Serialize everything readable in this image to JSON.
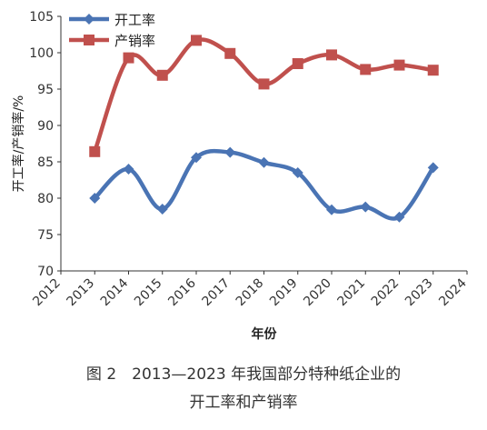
{
  "figure": {
    "caption_line1": "图 2　2013—2023 年我国部分特种纸企业的",
    "caption_line2": "开工率和产销率"
  },
  "chart_data": {
    "type": "line",
    "xlabel": "年份",
    "ylabel": "开工率/产销率/%",
    "xlim": [
      2012,
      2024
    ],
    "ylim": [
      70,
      105
    ],
    "x_ticks": [
      "2012",
      "2013",
      "2014",
      "2015",
      "2016",
      "2017",
      "2018",
      "2019",
      "2020",
      "2021",
      "2022",
      "2023",
      "2024"
    ],
    "y_ticks": [
      70,
      75,
      80,
      85,
      90,
      95,
      100,
      105
    ],
    "grid": false,
    "legend_position": "top-left",
    "x": [
      2013,
      2014,
      2015,
      2016,
      2017,
      2018,
      2019,
      2020,
      2021,
      2022,
      2023
    ],
    "series": [
      {
        "name": "开工率",
        "color": "#4a74b4",
        "marker": "diamond",
        "values": [
          80.0,
          84.0,
          78.5,
          85.6,
          86.3,
          84.9,
          83.5,
          78.4,
          78.8,
          77.4,
          84.2
        ]
      },
      {
        "name": "产销率",
        "color": "#c0504d",
        "marker": "square",
        "values": [
          86.4,
          99.3,
          96.9,
          101.7,
          99.9,
          95.7,
          98.5,
          99.7,
          97.7,
          98.3,
          97.6
        ]
      }
    ]
  }
}
